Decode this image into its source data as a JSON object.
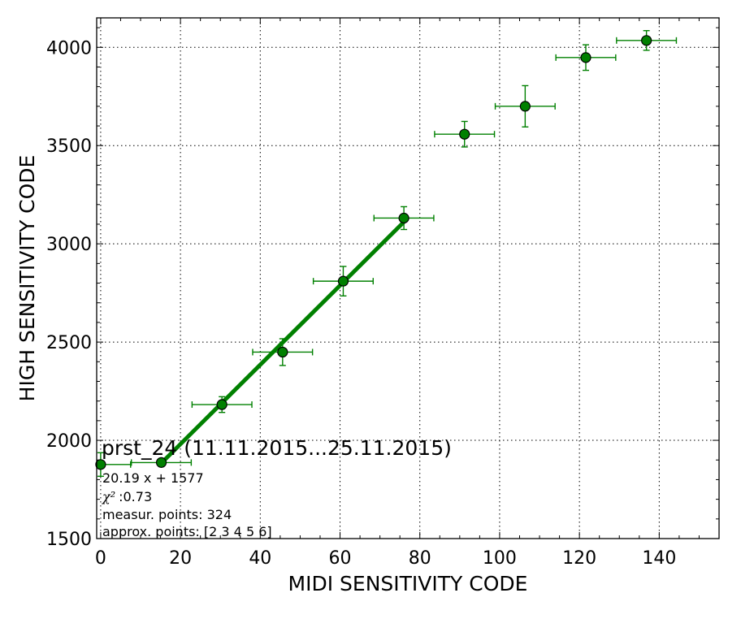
{
  "chart_data": {
    "type": "scatter",
    "xlabel": "MIDI SENSITIVITY CODE",
    "ylabel": "HIGH SENSITIVITY CODE",
    "xlim": [
      -1,
      155
    ],
    "ylim": [
      1500,
      4150
    ],
    "x_ticks": [
      0,
      20,
      40,
      60,
      80,
      100,
      120,
      140
    ],
    "y_ticks": [
      1500,
      2000,
      2500,
      3000,
      3500,
      4000
    ],
    "grid": true,
    "colors": {
      "series": "#008000",
      "marker_fill": "#008000",
      "marker_edge": "#000000"
    },
    "points": [
      {
        "x": 0,
        "y": 1877,
        "xerr_lo": 0,
        "xerr_hi": 7.5,
        "yerr": 60
      },
      {
        "x": 15.2,
        "y": 1887,
        "xerr_lo": 7.5,
        "xerr_hi": 7.5,
        "yerr": 8
      },
      {
        "x": 30.4,
        "y": 2182,
        "xerr_lo": 7.5,
        "xerr_hi": 7.5,
        "yerr": 40
      },
      {
        "x": 45.6,
        "y": 2449,
        "xerr_lo": 7.5,
        "xerr_hi": 7.5,
        "yerr": 68
      },
      {
        "x": 60.8,
        "y": 2810,
        "xerr_lo": 7.5,
        "xerr_hi": 7.5,
        "yerr": 75
      },
      {
        "x": 76.0,
        "y": 3131,
        "xerr_lo": 7.5,
        "xerr_hi": 7.5,
        "yerr": 58
      },
      {
        "x": 91.2,
        "y": 3558,
        "xerr_lo": 7.5,
        "xerr_hi": 7.5,
        "yerr": 65
      },
      {
        "x": 106.4,
        "y": 3700,
        "xerr_lo": 7.5,
        "xerr_hi": 7.5,
        "yerr": 105
      },
      {
        "x": 121.6,
        "y": 3948,
        "xerr_lo": 7.5,
        "xerr_hi": 7.5,
        "yerr": 65
      },
      {
        "x": 136.8,
        "y": 4035,
        "xerr_lo": 7.5,
        "xerr_hi": 7.5,
        "yerr": 50
      }
    ],
    "fit": {
      "slope": 20.19,
      "intercept": 1577,
      "x_range": [
        15.2,
        76.0
      ]
    },
    "annotation": {
      "title": "prst_24 (11.11.2015...25.11.2015)",
      "equation": "20.19 x + 1577",
      "chi2_symbol": "χ²",
      "chi2_value": ":0.73",
      "measur_points": "measur. points: 324",
      "approx_points": "approx. points: [2 3 4 5 6]"
    }
  }
}
